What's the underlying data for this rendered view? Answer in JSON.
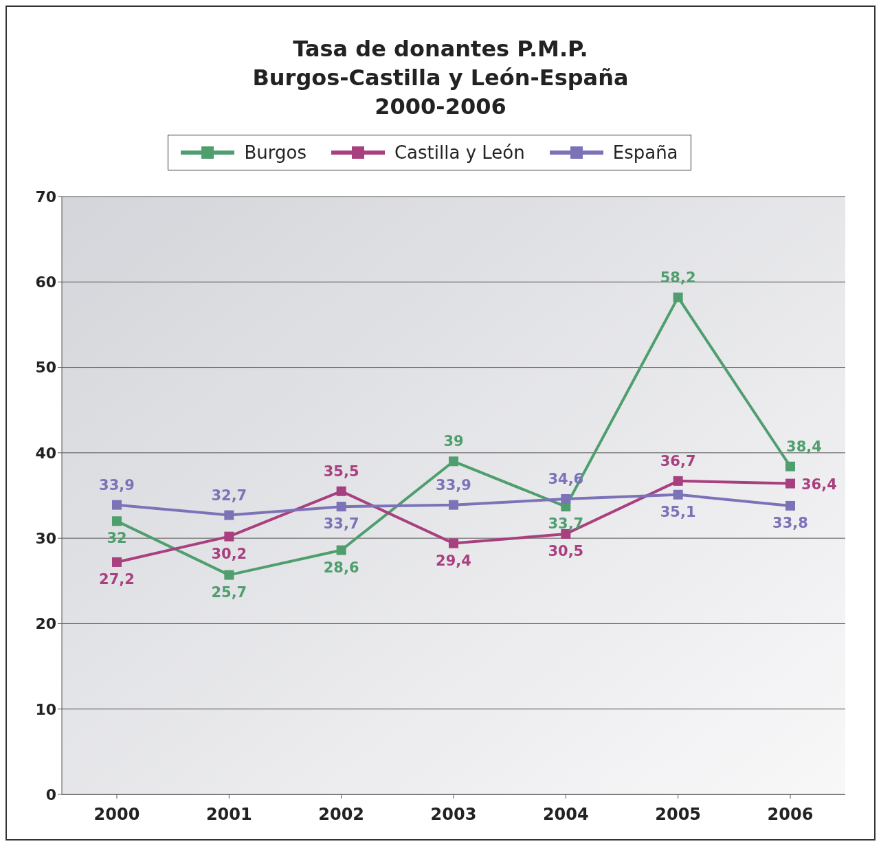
{
  "chart_data": {
    "type": "line",
    "title": "Tasa de donantes P.M.P.\nBurgos-Castilla y León-España\n2000-2006",
    "categories": [
      "2000",
      "2001",
      "2002",
      "2003",
      "2004",
      "2005",
      "2006"
    ],
    "series": [
      {
        "name": "Burgos",
        "color": "#4f9e6e",
        "values": [
          32,
          25.7,
          28.6,
          39,
          33.7,
          58.2,
          38.4
        ],
        "value_labels": [
          "32",
          "25,7",
          "28,6",
          "39",
          "33,7",
          "58,2",
          "38,4"
        ]
      },
      {
        "name": "Castilla y León",
        "color": "#a8407f",
        "values": [
          27.2,
          30.2,
          35.5,
          29.4,
          30.5,
          36.7,
          36.4
        ],
        "value_labels": [
          "27,2",
          "30,2",
          "35,5",
          "29,4",
          "30,5",
          "36,7",
          "36,4"
        ]
      },
      {
        "name": "España",
        "color": "#7b72b8",
        "values": [
          33.9,
          32.7,
          33.7,
          33.9,
          34.6,
          35.1,
          33.8
        ],
        "value_labels": [
          "33,9",
          "32,7",
          "33,7",
          "33,9",
          "34,6",
          "35,1",
          "33,8"
        ]
      }
    ],
    "ylim": [
      0,
      70
    ],
    "yticks": [
      0,
      10,
      20,
      30,
      40,
      50,
      60,
      70
    ],
    "grid": "y",
    "legend": "top",
    "marker": "square",
    "line_style": "solid"
  }
}
